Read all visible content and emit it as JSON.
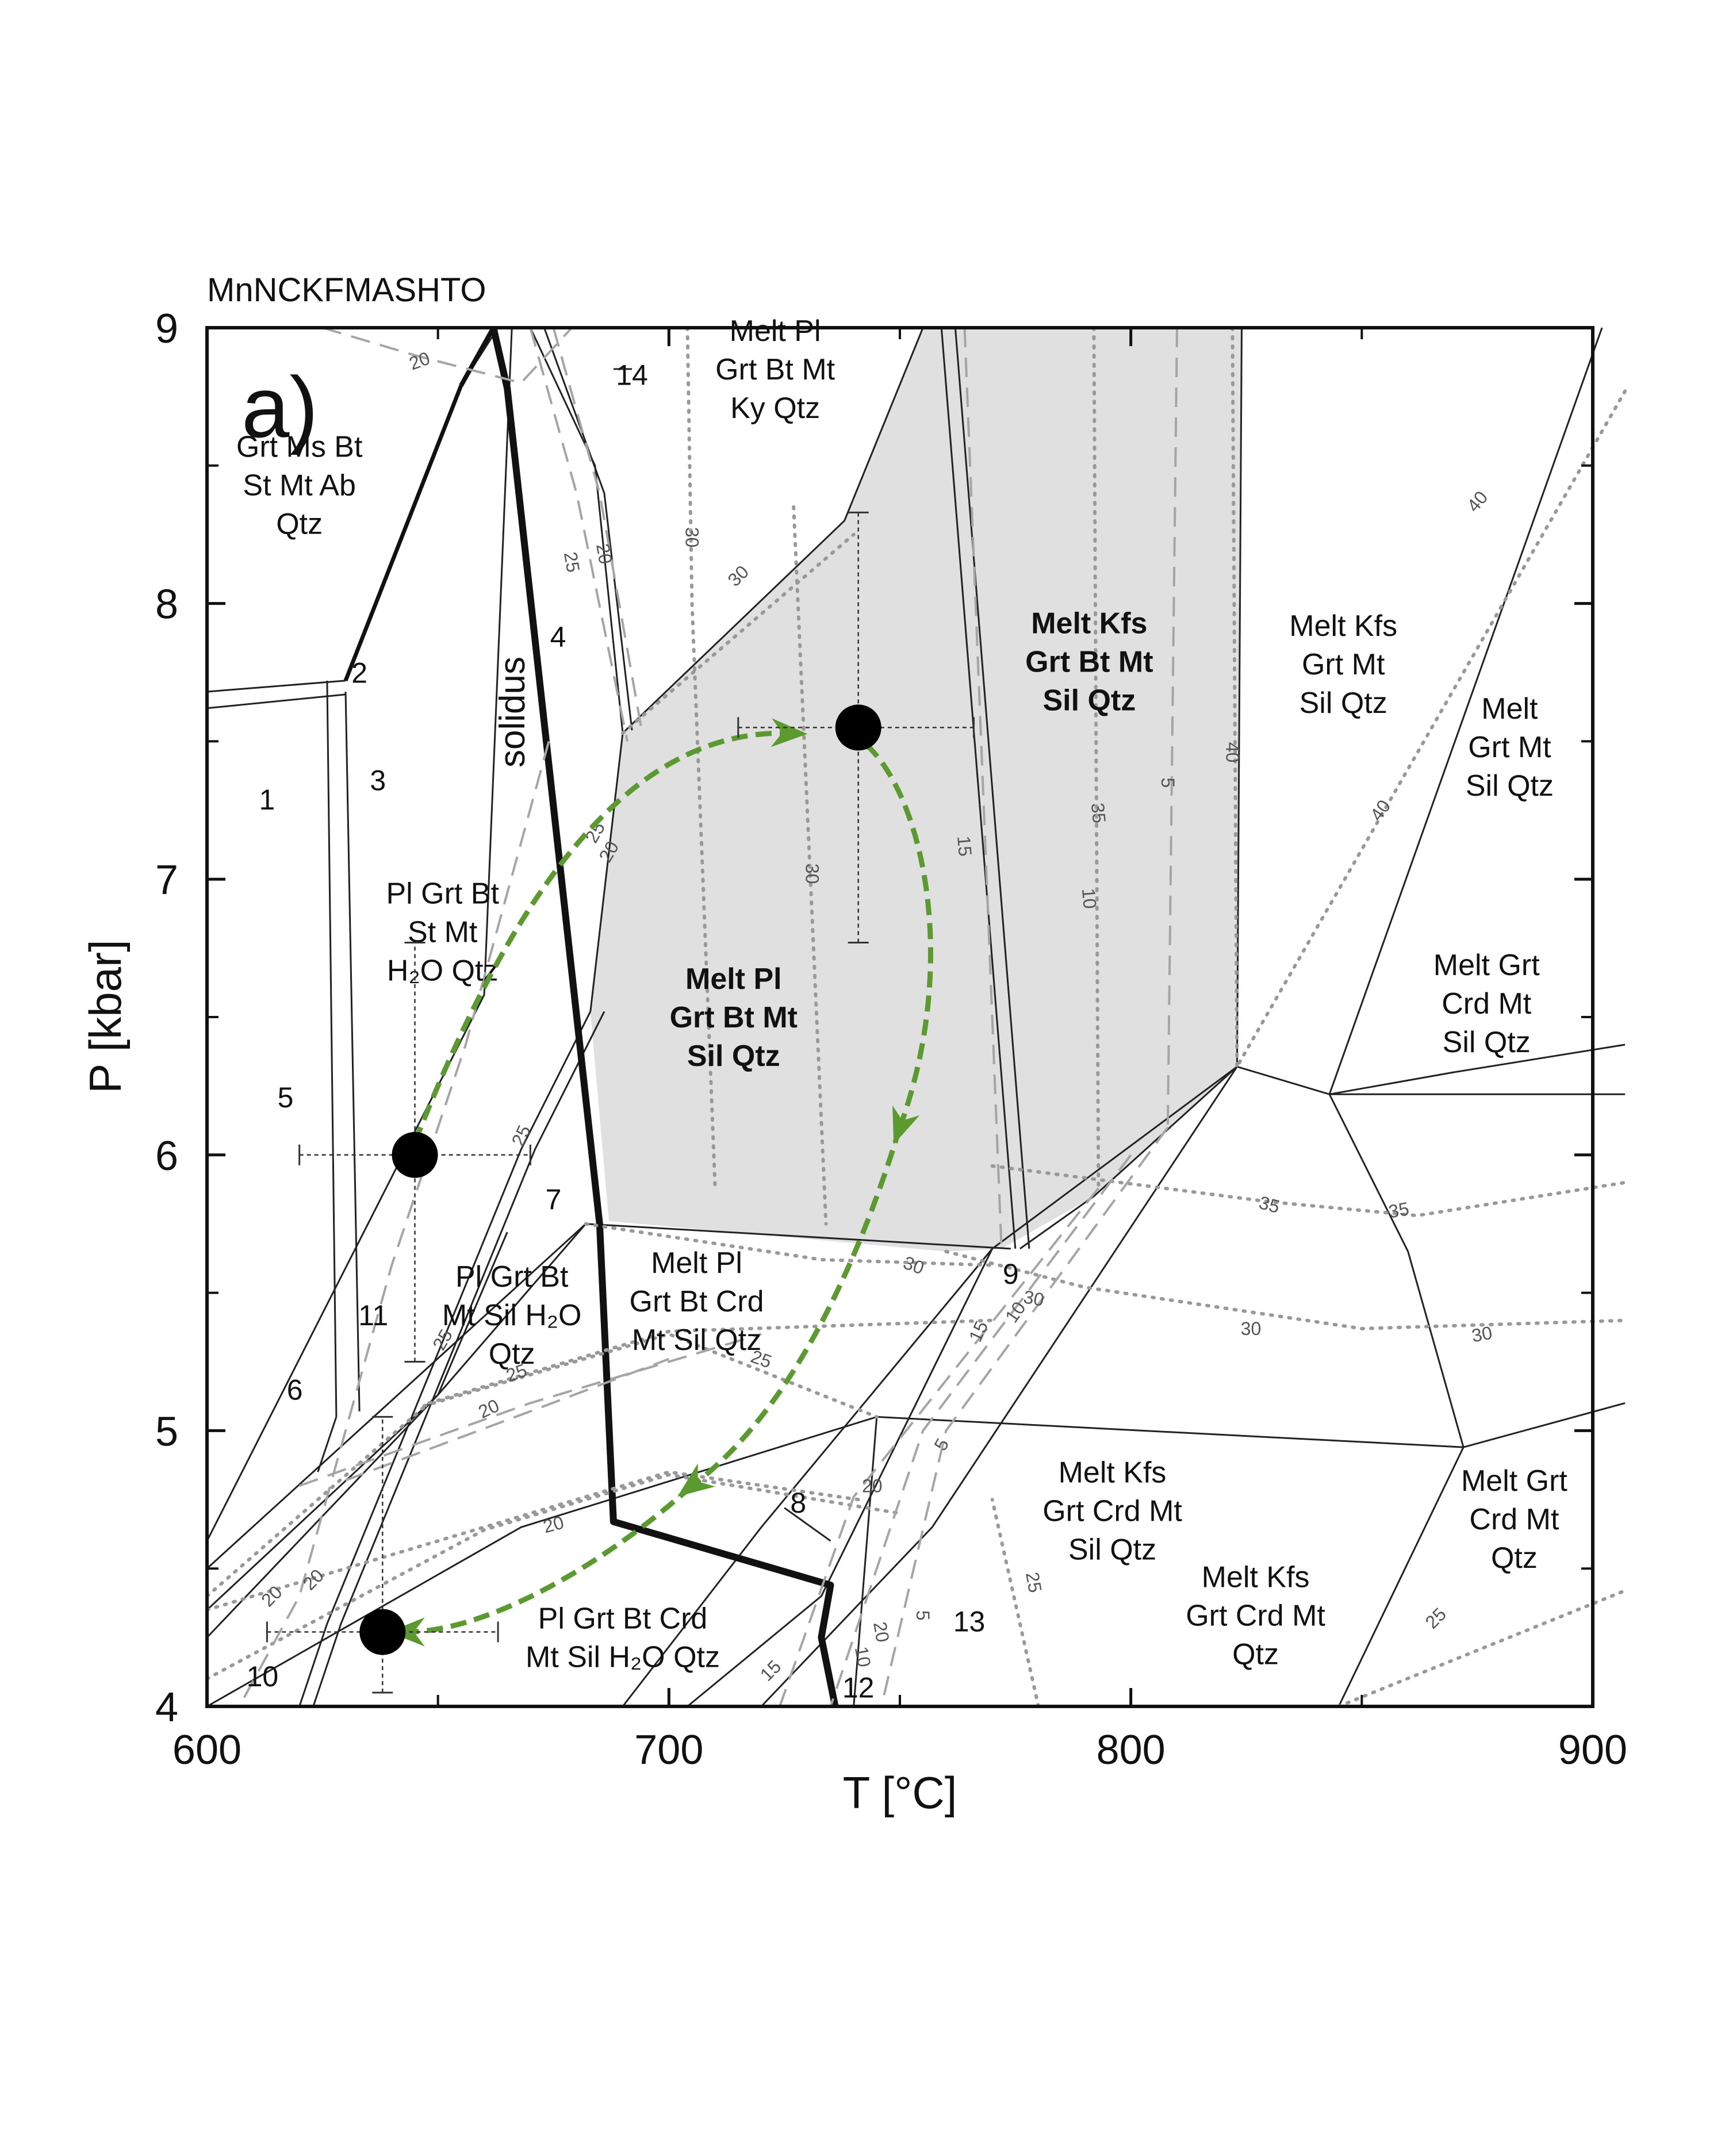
{
  "system_label": "MnNCKFMASHTO",
  "panel_label": "a)",
  "axes": {
    "x_title": "T [°C]",
    "y_title": "P [kbar]",
    "x_range": [
      600,
      900
    ],
    "y_range": [
      4,
      9
    ],
    "x_ticks": [
      "600",
      "700",
      "800",
      "900"
    ],
    "y_ticks": [
      "4",
      "5",
      "6",
      "7",
      "8",
      "9"
    ]
  },
  "solidus_label": "solidus",
  "fields": [
    {
      "id": "grt-ms-bt",
      "bold": false,
      "T": 620,
      "P": 8.43,
      "lines": [
        "Grt Ms Bt",
        "St Mt Ab",
        "Qtz"
      ]
    },
    {
      "id": "melt-pl-grt-bt-mt-ky",
      "bold": false,
      "T": 723,
      "P": 8.85,
      "lines": [
        "Melt Pl",
        "Grt Bt Mt",
        "Ky Qtz"
      ]
    },
    {
      "id": "melt-kfs-grt-bt-mt-sil",
      "bold": true,
      "T": 791,
      "P": 7.79,
      "lines": [
        "Melt Kfs",
        "Grt Bt Mt",
        "Sil Qtz"
      ]
    },
    {
      "id": "melt-kfs-grt-mt-sil",
      "bold": false,
      "T": 846,
      "P": 7.78,
      "lines": [
        "Melt Kfs",
        "Grt Mt",
        "Sil Qtz"
      ]
    },
    {
      "id": "melt-grt-mt-sil",
      "bold": false,
      "T": 882,
      "P": 7.48,
      "lines": [
        "Melt",
        "Grt Mt",
        "Sil Qtz"
      ]
    },
    {
      "id": "pl-grt-bt-st-mt",
      "bold": false,
      "T": 651,
      "P": 6.81,
      "lines": [
        "Pl Grt Bt",
        "St Mt",
        "H₂O Qtz"
      ]
    },
    {
      "id": "melt-pl-grt-bt-mt-sil",
      "bold": true,
      "T": 714,
      "P": 6.5,
      "lines": [
        "Melt Pl",
        "Grt Bt Mt",
        "Sil Qtz"
      ]
    },
    {
      "id": "melt-grt-crd-mt-sil",
      "bold": false,
      "T": 877,
      "P": 6.55,
      "lines": [
        "Melt Grt",
        "Crd Mt",
        "Sil Qtz"
      ]
    },
    {
      "id": "pl-grt-bt-mt-sil",
      "bold": false,
      "T": 666,
      "P": 5.42,
      "lines": [
        "Pl Grt Bt",
        "Mt Sil H₂O",
        "Qtz"
      ]
    },
    {
      "id": "melt-pl-grt-bt-crd",
      "bold": false,
      "T": 706,
      "P": 5.47,
      "lines": [
        "Melt Pl",
        "Grt Bt Crd",
        "Mt Sil Qtz"
      ]
    },
    {
      "id": "melt-kfs-grt-crd-mt-sil",
      "bold": false,
      "T": 796,
      "P": 4.71,
      "lines": [
        "Melt Kfs",
        "Grt Crd Mt",
        "Sil Qtz"
      ]
    },
    {
      "id": "melt-grt-crd-mt-qtz",
      "bold": false,
      "T": 883,
      "P": 4.68,
      "lines": [
        "Melt Grt",
        "Crd Mt",
        "Qtz"
      ]
    },
    {
      "id": "melt-kfs-grt-crd-mt-qtz",
      "bold": false,
      "T": 827,
      "P": 4.33,
      "lines": [
        "Melt Kfs",
        "Grt Crd Mt",
        "Qtz"
      ]
    },
    {
      "id": "pl-grt-bt-crd-mt-sil",
      "bold": false,
      "T": 690,
      "P": 4.25,
      "lines": [
        "Pl Grt Bt Crd",
        "Mt Sil H₂O Qtz"
      ]
    }
  ],
  "numbered_fields": [
    {
      "text": "1",
      "T": 613,
      "P": 7.29
    },
    {
      "text": "2",
      "T": 633,
      "P": 7.75
    },
    {
      "text": "3",
      "T": 637,
      "P": 7.36
    },
    {
      "text": "4",
      "T": 676,
      "P": 7.88
    },
    {
      "text": "5",
      "T": 617,
      "P": 6.21
    },
    {
      "text": "6",
      "T": 619,
      "P": 5.15
    },
    {
      "text": "7",
      "T": 675,
      "P": 5.84
    },
    {
      "text": "8",
      "T": 728,
      "P": 4.74
    },
    {
      "text": "9",
      "T": 774,
      "P": 5.57
    },
    {
      "text": "10",
      "T": 612,
      "P": 4.11
    },
    {
      "text": "11",
      "T": 636,
      "P": 5.42
    },
    {
      "text": "12",
      "T": 741,
      "P": 4.07
    },
    {
      "text": "13",
      "T": 765,
      "P": 4.31
    },
    {
      "text": "14",
      "T": 692,
      "P": 8.83
    }
  ],
  "isopleth_labels": [
    {
      "text": "20",
      "T": 646,
      "P": 8.88,
      "rot": -20
    },
    {
      "text": "25",
      "T": 679,
      "P": 8.15,
      "rot": 80
    },
    {
      "text": "20",
      "T": 686,
      "P": 8.18,
      "rot": 80
    },
    {
      "text": "30",
      "T": 705,
      "P": 8.24,
      "rot": 90
    },
    {
      "text": "30",
      "T": 715,
      "P": 8.1,
      "rot": -45
    },
    {
      "text": "25",
      "T": 684,
      "P": 7.17,
      "rot": -60
    },
    {
      "text": "20",
      "T": 687,
      "P": 7.1,
      "rot": -60
    },
    {
      "text": "30",
      "T": 731,
      "P": 7.02,
      "rot": 90
    },
    {
      "text": "15",
      "T": 764,
      "P": 7.12,
      "rot": 85
    },
    {
      "text": "35",
      "T": 793,
      "P": 7.24,
      "rot": 85
    },
    {
      "text": "10",
      "T": 791,
      "P": 6.93,
      "rot": 85
    },
    {
      "text": "5",
      "T": 808,
      "P": 7.35,
      "rot": 90
    },
    {
      "text": "40",
      "T": 822,
      "P": 7.46,
      "rot": 90
    },
    {
      "text": "40",
      "T": 875,
      "P": 8.37,
      "rot": -50
    },
    {
      "text": "40",
      "T": 854,
      "P": 7.25,
      "rot": -55
    },
    {
      "text": "25",
      "T": 668,
      "P": 6.07,
      "rot": -65
    },
    {
      "text": "35",
      "T": 830,
      "P": 5.82,
      "rot": 15
    },
    {
      "text": "35",
      "T": 858,
      "P": 5.8,
      "rot": -10
    },
    {
      "text": "30",
      "T": 753,
      "P": 5.6,
      "rot": 20
    },
    {
      "text": "30",
      "T": 779,
      "P": 5.48,
      "rot": 10
    },
    {
      "text": "10",
      "T": 775,
      "P": 5.43,
      "rot": -55
    },
    {
      "text": "30",
      "T": 826,
      "P": 5.37,
      "rot": 0
    },
    {
      "text": "30",
      "T": 876,
      "P": 5.35,
      "rot": -10
    },
    {
      "text": "15",
      "T": 767,
      "P": 5.36,
      "rot": -65
    },
    {
      "text": "25",
      "T": 651,
      "P": 5.33,
      "rot": -60
    },
    {
      "text": "25",
      "T": 667,
      "P": 5.21,
      "rot": -20
    },
    {
      "text": "25",
      "T": 720,
      "P": 5.26,
      "rot": 20
    },
    {
      "text": "20",
      "T": 661,
      "P": 5.08,
      "rot": -25
    },
    {
      "text": "5",
      "T": 759,
      "P": 4.95,
      "rot": -60
    },
    {
      "text": "20",
      "T": 744,
      "P": 4.8,
      "rot": 0
    },
    {
      "text": "20",
      "T": 675,
      "P": 4.66,
      "rot": -15
    },
    {
      "text": "20",
      "T": 614,
      "P": 4.4,
      "rot": -45
    },
    {
      "text": "20",
      "T": 623,
      "P": 4.46,
      "rot": -45
    },
    {
      "text": "25",
      "T": 779,
      "P": 4.45,
      "rot": 80
    },
    {
      "text": "20",
      "T": 746,
      "P": 4.27,
      "rot": 80
    },
    {
      "text": "5",
      "T": 755,
      "P": 4.33,
      "rot": 90
    },
    {
      "text": "10",
      "T": 742,
      "P": 4.18,
      "rot": 80
    },
    {
      "text": "15",
      "T": 722,
      "P": 4.13,
      "rot": -45
    },
    {
      "text": "25",
      "T": 866,
      "P": 4.32,
      "rot": -45
    }
  ],
  "sample_points": [
    {
      "T": 741,
      "P": 7.55,
      "err_T": [
        715,
        766
      ],
      "err_P": [
        6.77,
        8.33
      ]
    },
    {
      "T": 645,
      "P": 6.0,
      "err_T": [
        620,
        670
      ],
      "err_P": [
        5.25,
        6.77
      ]
    },
    {
      "T": 638,
      "P": 4.27,
      "err_T": [
        613,
        663
      ],
      "err_P": [
        4.05,
        5.05
      ]
    }
  ],
  "colors": {
    "shade": "#e0e0e0",
    "path": "#5a9a2f",
    "isopleth_dotted": "#999999",
    "isopleth_dashed": "#a5a5a5"
  }
}
